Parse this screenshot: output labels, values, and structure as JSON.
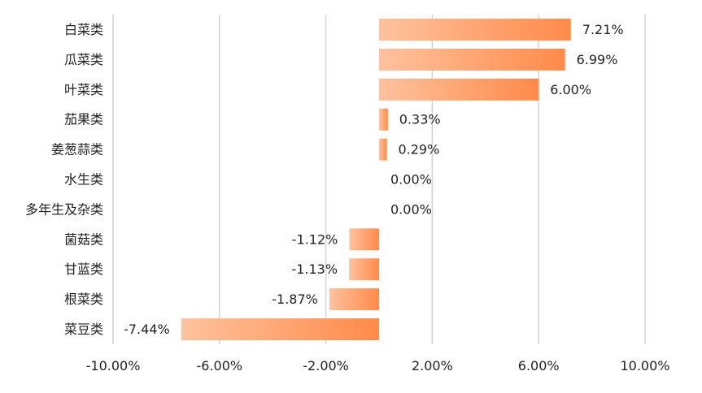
{
  "chart_data": {
    "type": "bar",
    "orientation": "horizontal",
    "categories": [
      "白菜类",
      "瓜菜类",
      "叶菜类",
      "茄果类",
      "姜葱蒜类",
      "水生类",
      "多年生及杂类",
      "菌菇类",
      "甘蓝类",
      "根菜类",
      "菜豆类"
    ],
    "values": [
      7.21,
      6.99,
      6.0,
      0.33,
      0.29,
      0.0,
      0.0,
      -1.12,
      -1.13,
      -1.87,
      -7.44
    ],
    "data_labels": [
      "7.21%",
      "6.99%",
      "6.00%",
      "0.33%",
      "0.29%",
      "0.00%",
      "0.00%",
      "-1.12%",
      "-1.13%",
      "-1.87%",
      "-7.44%"
    ],
    "xlim": [
      -10,
      10
    ],
    "x_ticks": [
      -10,
      -6,
      -2,
      2,
      6,
      10
    ],
    "x_tick_labels": [
      "-10.00%",
      "-6.00%",
      "-2.00%",
      "2.00%",
      "6.00%",
      "10.00%"
    ],
    "grid": true,
    "legend": "none",
    "bar_gradient": [
      "#ffc29e",
      "#ff8a4a"
    ],
    "grid_color": "#d4d4d4",
    "title": "",
    "xlabel": "",
    "ylabel": ""
  }
}
